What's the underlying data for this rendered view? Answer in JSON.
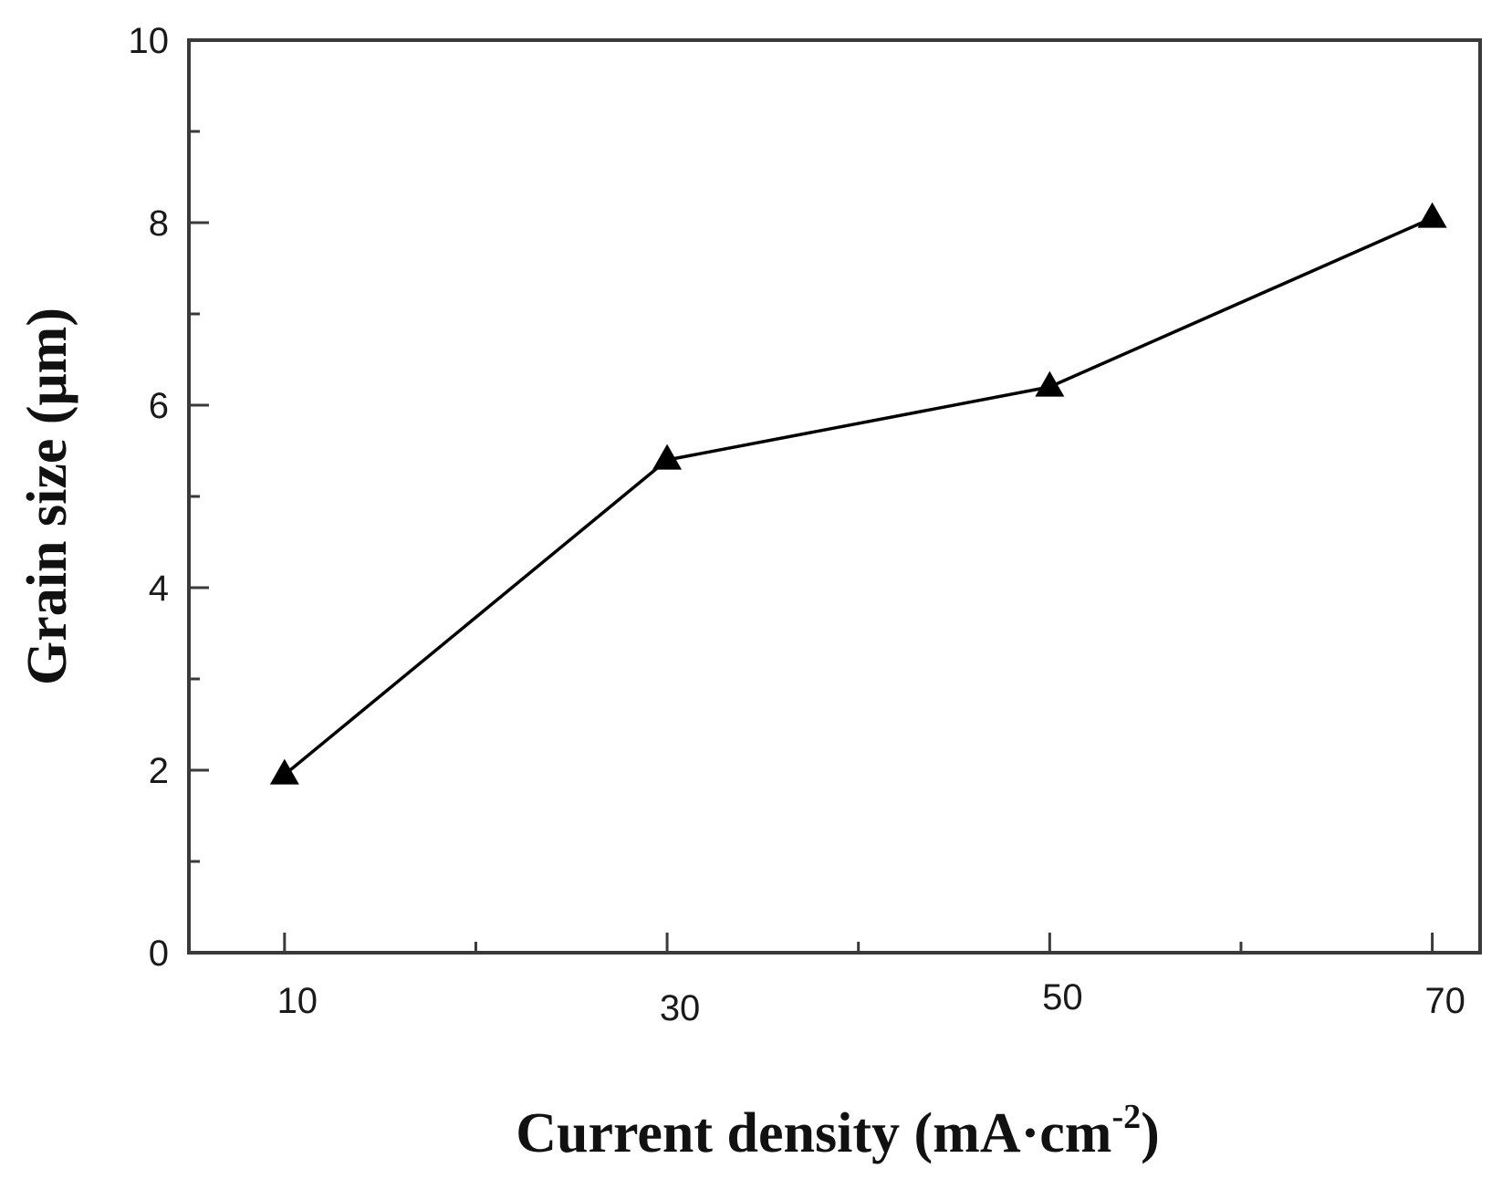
{
  "chart_data": {
    "type": "line",
    "x": [
      10,
      30,
      50,
      70
    ],
    "series": [
      {
        "values": [
          1.95,
          5.4,
          6.2,
          8.05
        ],
        "marker": "triangle"
      }
    ],
    "xlabel": "Current density (mA·cm",
    "xlabel_sup": "-2",
    "xlabel_close": ")",
    "ylabel": "Grain size (μm)",
    "xlim": [
      5,
      72.5
    ],
    "ylim": [
      0,
      10
    ],
    "xticks": [
      "10",
      "30",
      "50",
      "70"
    ],
    "yticks": [
      "0",
      "2",
      "4",
      "6",
      "8",
      "10"
    ],
    "grid": false,
    "colors": {
      "line": "#000000",
      "marker": "#000000",
      "axis": "#3a3a3a"
    }
  }
}
